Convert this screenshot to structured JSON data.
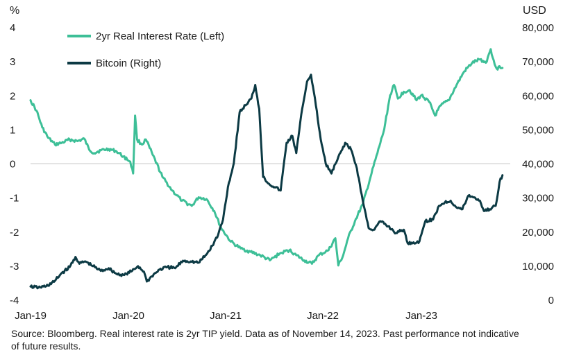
{
  "chart_data": {
    "type": "line",
    "left_axis_unit": "%",
    "right_axis_unit": "USD",
    "left_ticks": [
      "4",
      "3",
      "2",
      "1",
      "0",
      "-1",
      "-2",
      "-3",
      "-4"
    ],
    "right_ticks": [
      "80,000",
      "70,000",
      "60,000",
      "50,000",
      "40,000",
      "30,000",
      "20,000",
      "10,000",
      "0"
    ],
    "x_ticks": [
      "Jan-19",
      "Jan-20",
      "Jan-21",
      "Jan-22",
      "Jan-23"
    ],
    "ylim_left": [
      -4,
      4
    ],
    "ylim_right": [
      0,
      80000
    ],
    "xlim": [
      2019.0,
      2023.9
    ],
    "zero_line": true,
    "legend": {
      "placement": "top-left",
      "entries": [
        "2yr Real Interest Rate (Left)",
        "Bitcoin (Right)"
      ]
    },
    "series": [
      {
        "name": "2yr Real Interest Rate (Left)",
        "axis": "left",
        "color": "#3dbf97",
        "points": [
          [
            2019.0,
            1.85
          ],
          [
            2019.06,
            1.55
          ],
          [
            2019.12,
            1.05
          ],
          [
            2019.18,
            0.75
          ],
          [
            2019.25,
            0.55
          ],
          [
            2019.32,
            0.6
          ],
          [
            2019.4,
            0.7
          ],
          [
            2019.48,
            0.65
          ],
          [
            2019.55,
            0.72
          ],
          [
            2019.6,
            0.4
          ],
          [
            2019.65,
            0.3
          ],
          [
            2019.72,
            0.38
          ],
          [
            2019.8,
            0.42
          ],
          [
            2019.88,
            0.35
          ],
          [
            2019.95,
            0.2
          ],
          [
            2020.02,
            0.05
          ],
          [
            2020.05,
            -0.3
          ],
          [
            2020.07,
            1.4
          ],
          [
            2020.09,
            0.7
          ],
          [
            2020.14,
            0.55
          ],
          [
            2020.18,
            0.7
          ],
          [
            2020.25,
            0.25
          ],
          [
            2020.35,
            -0.4
          ],
          [
            2020.45,
            -0.8
          ],
          [
            2020.55,
            -1.1
          ],
          [
            2020.65,
            -1.25
          ],
          [
            2020.72,
            -1.0
          ],
          [
            2020.8,
            -1.05
          ],
          [
            2020.88,
            -1.4
          ],
          [
            2020.95,
            -1.9
          ],
          [
            2021.05,
            -2.3
          ],
          [
            2021.15,
            -2.5
          ],
          [
            2021.25,
            -2.6
          ],
          [
            2021.35,
            -2.7
          ],
          [
            2021.45,
            -2.85
          ],
          [
            2021.55,
            -2.65
          ],
          [
            2021.65,
            -2.55
          ],
          [
            2021.72,
            -2.7
          ],
          [
            2021.8,
            -2.85
          ],
          [
            2021.88,
            -2.95
          ],
          [
            2021.95,
            -2.7
          ],
          [
            2022.05,
            -2.55
          ],
          [
            2022.12,
            -2.2
          ],
          [
            2022.15,
            -3.0
          ],
          [
            2022.2,
            -2.7
          ],
          [
            2022.25,
            -2.2
          ],
          [
            2022.32,
            -1.7
          ],
          [
            2022.4,
            -1.2
          ],
          [
            2022.48,
            -0.4
          ],
          [
            2022.55,
            0.3
          ],
          [
            2022.62,
            1.0
          ],
          [
            2022.68,
            2.0
          ],
          [
            2022.72,
            2.3
          ],
          [
            2022.76,
            1.9
          ],
          [
            2022.82,
            2.1
          ],
          [
            2022.88,
            2.15
          ],
          [
            2022.95,
            1.85
          ],
          [
            2023.0,
            2.0
          ],
          [
            2023.08,
            1.8
          ],
          [
            2023.14,
            1.4
          ],
          [
            2023.2,
            1.7
          ],
          [
            2023.28,
            1.85
          ],
          [
            2023.36,
            2.3
          ],
          [
            2023.44,
            2.7
          ],
          [
            2023.52,
            2.95
          ],
          [
            2023.6,
            3.05
          ],
          [
            2023.66,
            2.95
          ],
          [
            2023.71,
            3.35
          ],
          [
            2023.75,
            2.9
          ],
          [
            2023.78,
            2.75
          ],
          [
            2023.8,
            2.85
          ],
          [
            2023.83,
            2.8
          ]
        ]
      },
      {
        "name": "Bitcoin (Right)",
        "axis": "right",
        "color": "#0c3a44",
        "points": [
          [
            2019.0,
            3800
          ],
          [
            2019.08,
            3500
          ],
          [
            2019.16,
            3900
          ],
          [
            2019.24,
            5200
          ],
          [
            2019.32,
            7800
          ],
          [
            2019.4,
            9500
          ],
          [
            2019.46,
            12500
          ],
          [
            2019.5,
            10500
          ],
          [
            2019.56,
            11200
          ],
          [
            2019.64,
            9800
          ],
          [
            2019.72,
            8400
          ],
          [
            2019.8,
            9200
          ],
          [
            2019.88,
            7500
          ],
          [
            2019.96,
            7200
          ],
          [
            2020.04,
            8400
          ],
          [
            2020.1,
            9800
          ],
          [
            2020.16,
            8200
          ],
          [
            2020.19,
            5300
          ],
          [
            2020.24,
            6800
          ],
          [
            2020.32,
            8800
          ],
          [
            2020.4,
            9500
          ],
          [
            2020.48,
            9200
          ],
          [
            2020.56,
            11400
          ],
          [
            2020.64,
            11200
          ],
          [
            2020.72,
            10800
          ],
          [
            2020.8,
            13200
          ],
          [
            2020.86,
            15800
          ],
          [
            2020.92,
            19000
          ],
          [
            2020.97,
            23500
          ],
          [
            2021.02,
            33000
          ],
          [
            2021.08,
            40000
          ],
          [
            2021.14,
            55000
          ],
          [
            2021.2,
            57000
          ],
          [
            2021.26,
            59000
          ],
          [
            2021.3,
            63000
          ],
          [
            2021.34,
            56000
          ],
          [
            2021.38,
            36000
          ],
          [
            2021.44,
            34000
          ],
          [
            2021.5,
            33000
          ],
          [
            2021.56,
            32000
          ],
          [
            2021.62,
            46000
          ],
          [
            2021.68,
            48000
          ],
          [
            2021.72,
            43000
          ],
          [
            2021.78,
            56000
          ],
          [
            2021.83,
            64000
          ],
          [
            2021.87,
            66000
          ],
          [
            2021.92,
            57000
          ],
          [
            2021.97,
            47000
          ],
          [
            2022.02,
            40000
          ],
          [
            2022.08,
            37000
          ],
          [
            2022.14,
            41000
          ],
          [
            2022.22,
            46000
          ],
          [
            2022.28,
            44000
          ],
          [
            2022.34,
            38500
          ],
          [
            2022.4,
            29000
          ],
          [
            2022.46,
            21000
          ],
          [
            2022.52,
            20500
          ],
          [
            2022.58,
            23000
          ],
          [
            2022.66,
            21500
          ],
          [
            2022.74,
            19500
          ],
          [
            2022.82,
            20500
          ],
          [
            2022.86,
            16500
          ],
          [
            2022.92,
            16800
          ],
          [
            2022.97,
            16600
          ],
          [
            2023.04,
            23000
          ],
          [
            2023.12,
            23500
          ],
          [
            2023.18,
            27500
          ],
          [
            2023.24,
            28500
          ],
          [
            2023.3,
            29000
          ],
          [
            2023.36,
            27000
          ],
          [
            2023.42,
            26500
          ],
          [
            2023.48,
            30500
          ],
          [
            2023.54,
            30000
          ],
          [
            2023.6,
            29000
          ],
          [
            2023.64,
            26000
          ],
          [
            2023.7,
            26500
          ],
          [
            2023.76,
            27500
          ],
          [
            2023.8,
            34500
          ],
          [
            2023.83,
            36500
          ]
        ]
      }
    ]
  },
  "footer": {
    "source": "Source: Bloomberg. Real interest rate is 2yr TIP yield. Data as of November 14, 2023. Past performance not indicative of future results."
  }
}
